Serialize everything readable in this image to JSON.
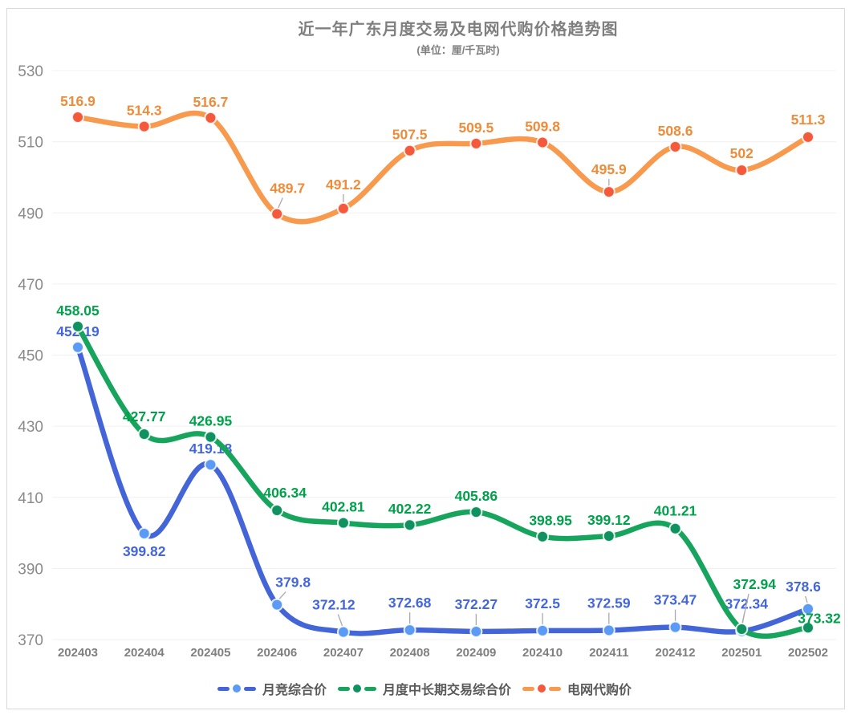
{
  "title": "近一年广东月度交易及电网代购价格趋势图",
  "subtitle": "(单位：厘/千瓦时)",
  "colors": {
    "border": "#d9d9d9",
    "grid": "#f0f0f0",
    "axis_text": "#8a8a8a",
    "title_text": "#7f7f7f",
    "legend_text": "#595959",
    "leader_line": "#aaaaaa",
    "background": "#ffffff"
  },
  "chart_data": {
    "type": "line",
    "smooth": true,
    "grid": "horizontal-only",
    "legend_position": "bottom",
    "xlabel": "",
    "ylabel": "",
    "ylim": [
      370,
      530
    ],
    "y_ticks": [
      530,
      510,
      490,
      470,
      450,
      430,
      410,
      390,
      370
    ],
    "categories": [
      "202403",
      "202404",
      "202405",
      "202406",
      "202407",
      "202408",
      "202409",
      "202410",
      "202411",
      "202412",
      "202501",
      "202502"
    ],
    "series": [
      {
        "name": "月竞综合价",
        "color": "#4365d8",
        "marker_color": "#5b9bf5",
        "label_color": "#4365e0",
        "values": [
          452.19,
          399.82,
          419.18,
          379.8,
          372.12,
          372.68,
          372.27,
          372.5,
          372.59,
          373.47,
          372.34,
          378.6
        ],
        "label_offsets": [
          [
            0,
            -14
          ],
          [
            0,
            28
          ],
          [
            0,
            -14
          ],
          [
            20,
            -22
          ],
          [
            -12,
            -28
          ],
          [
            0,
            -28
          ],
          [
            0,
            -28
          ],
          [
            0,
            -28
          ],
          [
            0,
            -28
          ],
          [
            0,
            -28
          ],
          [
            6,
            -28
          ],
          [
            -6,
            -22
          ]
        ],
        "leaders": [
          3,
          4,
          5,
          6,
          7,
          8,
          9,
          10,
          11
        ]
      },
      {
        "name": "月度中长期交易综合价",
        "color": "#17a45c",
        "marker_color": "#0f9160",
        "label_color": "#00a14b",
        "values": [
          458.05,
          427.77,
          426.95,
          406.34,
          402.81,
          402.22,
          405.86,
          398.95,
          399.12,
          401.21,
          372.94,
          373.32
        ],
        "label_offsets": [
          [
            0,
            -14
          ],
          [
            0,
            -16
          ],
          [
            0,
            -14
          ],
          [
            10,
            -16
          ],
          [
            0,
            -14
          ],
          [
            0,
            -14
          ],
          [
            0,
            -14
          ],
          [
            10,
            -14
          ],
          [
            0,
            -14
          ],
          [
            0,
            -16
          ],
          [
            16,
            -50
          ],
          [
            14,
            -6
          ]
        ],
        "leaders": [
          10
        ]
      },
      {
        "name": "电网代购价",
        "color": "#f79a4e",
        "marker_color": "#f4593b",
        "label_color": "#ef8c3a",
        "values": [
          516.9,
          514.3,
          516.7,
          489.7,
          491.2,
          507.5,
          509.5,
          509.8,
          495.9,
          508.6,
          502,
          511.3
        ],
        "label_offsets": [
          [
            0,
            -14
          ],
          [
            0,
            -14
          ],
          [
            0,
            -14
          ],
          [
            13,
            -26
          ],
          [
            0,
            -24
          ],
          [
            0,
            -14
          ],
          [
            0,
            -14
          ],
          [
            0,
            -14
          ],
          [
            0,
            -22
          ],
          [
            0,
            -14
          ],
          [
            0,
            -15
          ],
          [
            0,
            -16
          ]
        ],
        "leaders": [
          3,
          4,
          8
        ]
      }
    ]
  }
}
